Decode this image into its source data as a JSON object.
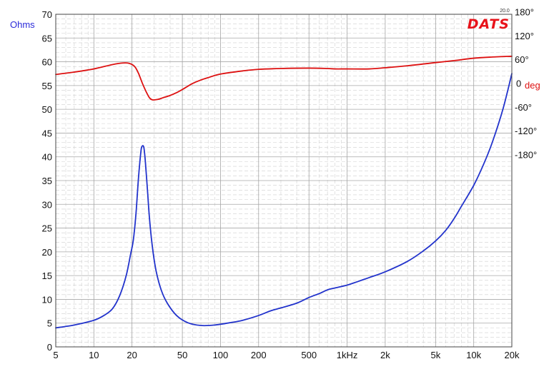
{
  "chart_data": {
    "type": "line",
    "branding": {
      "logo_text": "DATS",
      "version": "20.0"
    },
    "y_left": {
      "label": "Ohms",
      "range": [
        0,
        70
      ],
      "ticks": [
        "0",
        "5",
        "10",
        "15",
        "20",
        "25",
        "30",
        "35",
        "40",
        "45",
        "50",
        "55",
        "60",
        "65",
        "70"
      ],
      "color": "#2b2bd9"
    },
    "y_right": {
      "label": "deg",
      "ticks": [
        {
          "value": 180,
          "label": "180°"
        },
        {
          "value": 120,
          "label": "120°"
        },
        {
          "value": 60,
          "label": "60°"
        },
        {
          "value": 0,
          "label": "0"
        },
        {
          "value": -60,
          "label": "-60°"
        },
        {
          "value": -120,
          "label": "-120°"
        },
        {
          "value": -180,
          "label": "-180°"
        }
      ],
      "ohms_at_0deg": 55.5,
      "ohms_per_60deg": 5.0,
      "color": "#dd1111"
    },
    "x_axis": {
      "scale": "log",
      "range": [
        5,
        20000
      ],
      "ticks": [
        {
          "value": 5,
          "label": "5"
        },
        {
          "value": 10,
          "label": "10"
        },
        {
          "value": 20,
          "label": "20"
        },
        {
          "value": 50,
          "label": "50"
        },
        {
          "value": 100,
          "label": "100"
        },
        {
          "value": 200,
          "label": "200"
        },
        {
          "value": 500,
          "label": "500"
        },
        {
          "value": 1000,
          "label": "1kHz"
        },
        {
          "value": 2000,
          "label": "2k"
        },
        {
          "value": 5000,
          "label": "5k"
        },
        {
          "value": 10000,
          "label": "10k"
        },
        {
          "value": 20000,
          "label": "20k"
        }
      ]
    },
    "grid": true,
    "series": [
      {
        "name": "Ohms",
        "axis": "left",
        "color": "#2233cc",
        "points": [
          [
            5,
            4.0
          ],
          [
            7,
            4.6
          ],
          [
            10,
            5.6
          ],
          [
            12,
            6.6
          ],
          [
            14,
            8.0
          ],
          [
            16,
            10.8
          ],
          [
            18,
            15.0
          ],
          [
            19.5,
            19.5
          ],
          [
            20.5,
            22.5
          ],
          [
            21.5,
            28.0
          ],
          [
            22.5,
            35.5
          ],
          [
            23.5,
            41.0
          ],
          [
            24,
            42.2
          ],
          [
            24.8,
            42.0
          ],
          [
            25.5,
            39.0
          ],
          [
            26.5,
            33.0
          ],
          [
            27.5,
            27.0
          ],
          [
            29,
            21.0
          ],
          [
            31,
            16.0
          ],
          [
            34,
            12.0
          ],
          [
            38,
            9.2
          ],
          [
            45,
            6.6
          ],
          [
            55,
            5.1
          ],
          [
            70,
            4.5
          ],
          [
            90,
            4.6
          ],
          [
            120,
            5.1
          ],
          [
            150,
            5.6
          ],
          [
            200,
            6.6
          ],
          [
            250,
            7.6
          ],
          [
            300,
            8.2
          ],
          [
            400,
            9.2
          ],
          [
            500,
            10.4
          ],
          [
            600,
            11.2
          ],
          [
            700,
            12.0
          ],
          [
            800,
            12.4
          ],
          [
            1000,
            13.0
          ],
          [
            1200,
            13.7
          ],
          [
            1500,
            14.6
          ],
          [
            2000,
            15.8
          ],
          [
            3000,
            18.0
          ],
          [
            4000,
            20.2
          ],
          [
            5000,
            22.3
          ],
          [
            6000,
            24.5
          ],
          [
            7000,
            27.0
          ],
          [
            8000,
            29.6
          ],
          [
            10000,
            34.0
          ],
          [
            12000,
            38.5
          ],
          [
            14000,
            43.0
          ],
          [
            17000,
            50.0
          ],
          [
            20000,
            57.5
          ]
        ]
      },
      {
        "name": "deg",
        "axis": "right",
        "color": "#dd1111",
        "points": [
          [
            5,
            22
          ],
          [
            7,
            28
          ],
          [
            10,
            36
          ],
          [
            14,
            47
          ],
          [
            17,
            51
          ],
          [
            19,
            50
          ],
          [
            21,
            42
          ],
          [
            22.5,
            25
          ],
          [
            24,
            2
          ],
          [
            26,
            -23
          ],
          [
            27.5,
            -37
          ],
          [
            29,
            -42
          ],
          [
            32,
            -41
          ],
          [
            35,
            -37
          ],
          [
            40,
            -31
          ],
          [
            45,
            -24
          ],
          [
            50,
            -16
          ],
          [
            55,
            -8
          ],
          [
            60,
            -1
          ],
          [
            70,
            8
          ],
          [
            80,
            14
          ],
          [
            100,
            23
          ],
          [
            150,
            31
          ],
          [
            200,
            35
          ],
          [
            300,
            37
          ],
          [
            500,
            38
          ],
          [
            700,
            37
          ],
          [
            800,
            36
          ],
          [
            1000,
            36
          ],
          [
            1500,
            36
          ],
          [
            2000,
            39
          ],
          [
            3000,
            44
          ],
          [
            5000,
            52
          ],
          [
            7000,
            57
          ],
          [
            10000,
            63
          ],
          [
            14000,
            66
          ],
          [
            20000,
            68
          ]
        ]
      }
    ]
  }
}
